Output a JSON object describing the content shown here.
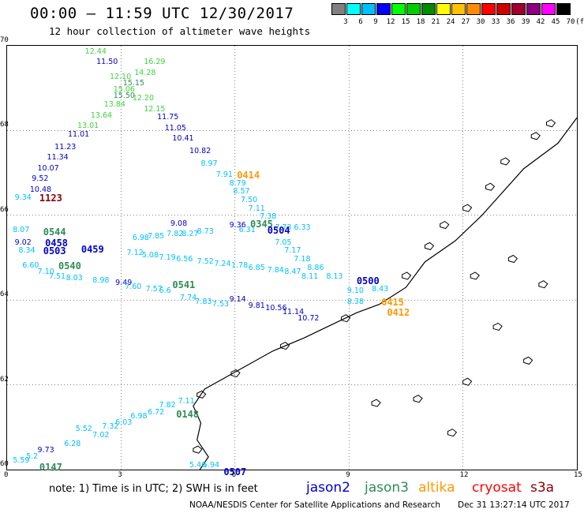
{
  "header": {
    "title": "00:00 – 11:59 UTC 12/30/2017",
    "subtitle": "12 hour collection of altimeter wave heights"
  },
  "color_scale": {
    "unit": "(ft)",
    "bins": [
      {
        "label": "3",
        "color": "#808080"
      },
      {
        "label": "6",
        "color": "#00ffff"
      },
      {
        "label": "9",
        "color": "#00bfff"
      },
      {
        "label": "12",
        "color": "#0000ff"
      },
      {
        "label": "15",
        "color": "#00ff00"
      },
      {
        "label": "18",
        "color": "#00cd00"
      },
      {
        "label": "21",
        "color": "#008b00"
      },
      {
        "label": "24",
        "color": "#ffff00"
      },
      {
        "label": "27",
        "color": "#ffc100"
      },
      {
        "label": "30",
        "color": "#ff8c00"
      },
      {
        "label": "33",
        "color": "#ff0000"
      },
      {
        "label": "36",
        "color": "#cd0000"
      },
      {
        "label": "39",
        "color": "#a0002a"
      },
      {
        "label": "42",
        "color": "#8b0080"
      },
      {
        "label": "45",
        "color": "#ff00ff"
      },
      {
        "label": "70",
        "color": "#000000"
      }
    ]
  },
  "axes": {
    "lat_ticks": [
      "70",
      "68",
      "66",
      "64",
      "62",
      "60"
    ],
    "lon_ticks": [
      "0",
      "3",
      "6",
      "9",
      "12",
      "15"
    ],
    "lat_range": [
      60,
      70
    ],
    "lon_range": [
      0,
      15
    ]
  },
  "colors": {
    "cyan": "#00bfff",
    "blue": "#0000cd",
    "green": "#2e8b57",
    "lightgreen": "#3cd33c",
    "orange": "#ff9900",
    "darkred": "#8b0000",
    "coast": "#000000"
  },
  "measurements": [
    {
      "v": "12.44",
      "lon": 2.05,
      "lat": 69.85,
      "c": "lightgreen"
    },
    {
      "v": "11.50",
      "lon": 2.35,
      "lat": 69.6,
      "c": "blue"
    },
    {
      "v": "16.29",
      "lon": 3.6,
      "lat": 69.6,
      "c": "lightgreen"
    },
    {
      "v": "14.28",
      "lon": 3.35,
      "lat": 69.35,
      "c": "lightgreen"
    },
    {
      "v": "12.10",
      "lon": 2.7,
      "lat": 69.25,
      "c": "lightgreen"
    },
    {
      "v": "15.15",
      "lon": 3.05,
      "lat": 69.1,
      "c": "green"
    },
    {
      "v": "15.06",
      "lon": 2.8,
      "lat": 68.95,
      "c": "lightgreen"
    },
    {
      "v": "15.50",
      "lon": 2.8,
      "lat": 68.8,
      "c": "green"
    },
    {
      "v": "12.20",
      "lon": 3.3,
      "lat": 68.75,
      "c": "lightgreen"
    },
    {
      "v": "13.84",
      "lon": 2.55,
      "lat": 68.6,
      "c": "lightgreen"
    },
    {
      "v": "12.15",
      "lon": 3.6,
      "lat": 68.5,
      "c": "lightgreen"
    },
    {
      "v": "13.64",
      "lon": 2.2,
      "lat": 68.35,
      "c": "lightgreen"
    },
    {
      "v": "11.75",
      "lon": 3.95,
      "lat": 68.3,
      "c": "blue"
    },
    {
      "v": "13.01",
      "lon": 1.85,
      "lat": 68.1,
      "c": "lightgreen"
    },
    {
      "v": "11.05",
      "lon": 4.15,
      "lat": 68.05,
      "c": "blue"
    },
    {
      "v": "11.01",
      "lon": 1.6,
      "lat": 67.9,
      "c": "blue"
    },
    {
      "v": "10.41",
      "lon": 4.35,
      "lat": 67.8,
      "c": "blue"
    },
    {
      "v": "11.23",
      "lon": 1.25,
      "lat": 67.6,
      "c": "blue"
    },
    {
      "v": "10.82",
      "lon": 4.8,
      "lat": 67.5,
      "c": "blue"
    },
    {
      "v": "11.34",
      "lon": 1.05,
      "lat": 67.35,
      "c": "blue"
    },
    {
      "v": "8.97",
      "lon": 5.1,
      "lat": 67.2,
      "c": "cyan"
    },
    {
      "v": "10.07",
      "lon": 0.8,
      "lat": 67.1,
      "c": "blue"
    },
    {
      "v": "7.91",
      "lon": 5.5,
      "lat": 66.95,
      "c": "cyan"
    },
    {
      "v": "9.52",
      "lon": 0.65,
      "lat": 66.85,
      "c": "blue"
    },
    {
      "v": "8.79",
      "lon": 5.85,
      "lat": 66.75,
      "c": "cyan"
    },
    {
      "v": "10.48",
      "lon": 0.6,
      "lat": 66.6,
      "c": "blue"
    },
    {
      "v": "8.57",
      "lon": 5.95,
      "lat": 66.55,
      "c": "cyan"
    },
    {
      "v": "9.34",
      "lon": 0.2,
      "lat": 66.4,
      "c": "cyan"
    },
    {
      "v": "7.50",
      "lon": 6.15,
      "lat": 66.35,
      "c": "cyan"
    },
    {
      "v": "7.11",
      "lon": 6.35,
      "lat": 66.15,
      "c": "cyan"
    },
    {
      "v": "7.38",
      "lon": 6.65,
      "lat": 65.95,
      "c": "cyan"
    },
    {
      "v": "9.36",
      "lon": 5.85,
      "lat": 65.75,
      "c": "blue"
    },
    {
      "v": "7.05",
      "lon": 7.05,
      "lat": 65.35,
      "c": "cyan"
    },
    {
      "v": "7.17",
      "lon": 7.3,
      "lat": 65.15,
      "c": "cyan"
    },
    {
      "v": "7.18",
      "lon": 7.55,
      "lat": 64.95,
      "c": "cyan"
    },
    {
      "v": "8.86",
      "lon": 7.9,
      "lat": 64.75,
      "c": "cyan"
    },
    {
      "v": "8.13",
      "lon": 8.4,
      "lat": 64.55,
      "c": "cyan"
    },
    {
      "v": "9.10",
      "lon": 8.95,
      "lat": 64.2,
      "c": "cyan"
    },
    {
      "v": "8.38",
      "lon": 8.95,
      "lat": 63.95,
      "c": "cyan"
    },
    {
      "v": "8.43",
      "lon": 9.6,
      "lat": 64.25,
      "c": "cyan"
    },
    {
      "v": "9.14",
      "lon": 5.85,
      "lat": 64.0,
      "c": "blue"
    },
    {
      "v": "9.81",
      "lon": 6.35,
      "lat": 63.85,
      "c": "blue"
    },
    {
      "v": "10.56",
      "lon": 6.8,
      "lat": 63.8,
      "c": "blue"
    },
    {
      "v": "11.14",
      "lon": 7.25,
      "lat": 63.7,
      "c": "blue"
    },
    {
      "v": "10.72",
      "lon": 7.65,
      "lat": 63.55,
      "c": "blue"
    },
    {
      "v": "8.07",
      "lon": 0.15,
      "lat": 65.65,
      "c": "cyan"
    },
    {
      "v": "9.02",
      "lon": 0.2,
      "lat": 65.35,
      "c": "blue"
    },
    {
      "v": "8.34",
      "lon": 0.3,
      "lat": 65.15,
      "c": "cyan"
    },
    {
      "v": "6.60",
      "lon": 0.4,
      "lat": 64.8,
      "c": "cyan"
    },
    {
      "v": "7.10",
      "lon": 0.8,
      "lat": 64.65,
      "c": "cyan"
    },
    {
      "v": "7.51",
      "lon": 1.1,
      "lat": 64.55,
      "c": "cyan"
    },
    {
      "v": "8.03",
      "lon": 1.55,
      "lat": 64.5,
      "c": "cyan"
    },
    {
      "v": "8.98",
      "lon": 2.25,
      "lat": 64.45,
      "c": "cyan"
    },
    {
      "v": "9.49",
      "lon": 2.85,
      "lat": 64.4,
      "c": "blue"
    },
    {
      "v": "7.60",
      "lon": 3.1,
      "lat": 64.3,
      "c": "cyan"
    },
    {
      "v": "7.57",
      "lon": 3.65,
      "lat": 64.25,
      "c": "cyan"
    },
    {
      "v": "6.6",
      "lon": 4.0,
      "lat": 64.2,
      "c": "cyan"
    },
    {
      "v": "7.74",
      "lon": 4.55,
      "lat": 64.05,
      "c": "cyan"
    },
    {
      "v": "7.83",
      "lon": 4.95,
      "lat": 63.95,
      "c": "cyan"
    },
    {
      "v": "7.53",
      "lon": 5.4,
      "lat": 63.9,
      "c": "cyan"
    },
    {
      "v": "7.12",
      "lon": 3.15,
      "lat": 65.1,
      "c": "cyan"
    },
    {
      "v": "5.08",
      "lon": 3.55,
      "lat": 65.05,
      "c": "cyan"
    },
    {
      "v": "7.19",
      "lon": 4.0,
      "lat": 65.0,
      "c": "cyan"
    },
    {
      "v": "6.56",
      "lon": 4.45,
      "lat": 64.95,
      "c": "cyan"
    },
    {
      "v": "7.52",
      "lon": 5.0,
      "lat": 64.9,
      "c": "cyan"
    },
    {
      "v": "7.24",
      "lon": 5.45,
      "lat": 64.85,
      "c": "cyan"
    },
    {
      "v": "1.78",
      "lon": 5.9,
      "lat": 64.8,
      "c": "cyan"
    },
    {
      "v": "6.85",
      "lon": 6.35,
      "lat": 64.75,
      "c": "cyan"
    },
    {
      "v": "7.84",
      "lon": 6.85,
      "lat": 64.7,
      "c": "cyan"
    },
    {
      "v": "8.47",
      "lon": 7.3,
      "lat": 64.65,
      "c": "cyan"
    },
    {
      "v": "8.11",
      "lon": 7.75,
      "lat": 64.55,
      "c": "cyan"
    },
    {
      "v": "6.98",
      "lon": 3.3,
      "lat": 65.45,
      "c": "cyan"
    },
    {
      "v": "7.85",
      "lon": 3.7,
      "lat": 65.5,
      "c": "cyan"
    },
    {
      "v": "7.82",
      "lon": 4.2,
      "lat": 65.55,
      "c": "cyan"
    },
    {
      "v": "8.27",
      "lon": 4.6,
      "lat": 65.55,
      "c": "cyan"
    },
    {
      "v": "8.73",
      "lon": 5.0,
      "lat": 65.6,
      "c": "cyan"
    },
    {
      "v": "6.31",
      "lon": 6.1,
      "lat": 65.65,
      "c": "cyan"
    },
    {
      "v": "9.08",
      "lon": 4.3,
      "lat": 65.8,
      "c": "blue"
    },
    {
      "v": "7.73",
      "lon": 7.05,
      "lat": 65.7,
      "c": "cyan"
    },
    {
      "v": "6.33",
      "lon": 7.55,
      "lat": 65.7,
      "c": "cyan"
    },
    {
      "v": "5.52",
      "lon": 1.8,
      "lat": 60.95,
      "c": "cyan"
    },
    {
      "v": "6.28",
      "lon": 1.5,
      "lat": 60.6,
      "c": "cyan"
    },
    {
      "v": "7.02",
      "lon": 2.25,
      "lat": 60.8,
      "c": "cyan"
    },
    {
      "v": "7.32",
      "lon": 2.5,
      "lat": 61.0,
      "c": "cyan"
    },
    {
      "v": "6.03",
      "lon": 2.85,
      "lat": 61.1,
      "c": "cyan"
    },
    {
      "v": "6.98",
      "lon": 3.25,
      "lat": 61.25,
      "c": "cyan"
    },
    {
      "v": "6.72",
      "lon": 3.7,
      "lat": 61.35,
      "c": "cyan"
    },
    {
      "v": "7.82",
      "lon": 4.0,
      "lat": 61.5,
      "c": "cyan"
    },
    {
      "v": "7.11",
      "lon": 4.5,
      "lat": 61.6,
      "c": "cyan"
    },
    {
      "v": "9.73",
      "lon": 0.8,
      "lat": 60.45,
      "c": "blue"
    },
    {
      "v": "5.59",
      "lon": 0.15,
      "lat": 60.2,
      "c": "cyan"
    },
    {
      "v": "5.2",
      "lon": 0.5,
      "lat": 60.3,
      "c": "cyan"
    },
    {
      "v": "5.46",
      "lon": 4.8,
      "lat": 60.1,
      "c": "cyan"
    },
    {
      "v": "5.94",
      "lon": 5.15,
      "lat": 60.1,
      "c": "cyan"
    }
  ],
  "pass_times": [
    {
      "t": "0414",
      "lon": 6.05,
      "lat": 66.95,
      "c": "orange"
    },
    {
      "t": "1123",
      "lon": 0.85,
      "lat": 66.4,
      "c": "darkred"
    },
    {
      "t": "0345",
      "lon": 6.4,
      "lat": 65.8,
      "c": "green"
    },
    {
      "t": "0504",
      "lon": 6.85,
      "lat": 65.65,
      "c": "blue"
    },
    {
      "t": "0544",
      "lon": 0.95,
      "lat": 65.6,
      "c": "green"
    },
    {
      "t": "0458",
      "lon": 1.0,
      "lat": 65.35,
      "c": "blue"
    },
    {
      "t": "0503",
      "lon": 0.95,
      "lat": 65.15,
      "c": "blue"
    },
    {
      "t": "0459",
      "lon": 1.95,
      "lat": 65.2,
      "c": "blue"
    },
    {
      "t": "0540",
      "lon": 1.35,
      "lat": 64.8,
      "c": "green"
    },
    {
      "t": "0541",
      "lon": 4.35,
      "lat": 64.35,
      "c": "green"
    },
    {
      "t": "0500",
      "lon": 9.2,
      "lat": 64.45,
      "c": "blue"
    },
    {
      "t": "0415",
      "lon": 9.85,
      "lat": 63.95,
      "c": "orange"
    },
    {
      "t": "0412",
      "lon": 10.0,
      "lat": 63.7,
      "c": "orange"
    },
    {
      "t": "0148",
      "lon": 4.45,
      "lat": 61.3,
      "c": "green"
    },
    {
      "t": "0147",
      "lon": 0.85,
      "lat": 60.05,
      "c": "green"
    },
    {
      "t": "0507",
      "lon": 5.7,
      "lat": 59.95,
      "c": "blue"
    }
  ],
  "footer": {
    "note": "note: 1) Time is in UTC; 2) SWH is in feet",
    "satellites": [
      {
        "name": "jason2",
        "color": "#0000cd"
      },
      {
        "name": "jason3",
        "color": "#2e8b57"
      },
      {
        "name": "altika",
        "color": "#ff9900"
      },
      {
        "name": "cryosat",
        "color": "#ff0000"
      },
      {
        "name": "s3a",
        "color": "#8b0000"
      }
    ],
    "credit": "NOAA/NESDIS Center for Satellite Applications and Research",
    "timestamp": "Dec 31 13:27:14 UTC 2017"
  }
}
